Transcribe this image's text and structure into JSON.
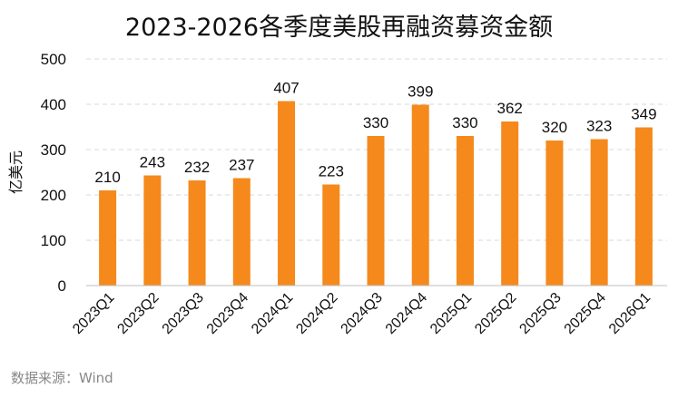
{
  "title": "2023-2026各季度美股再融资募资金额",
  "source": "数据来源：Wind",
  "watermark": "Wind",
  "chart_data": {
    "type": "bar",
    "title": "2023-2026各季度美股再融资募资金额",
    "xlabel": "",
    "ylabel": "亿美元",
    "ylim": [
      0,
      500
    ],
    "yticks": [
      0,
      100,
      200,
      300,
      400,
      500
    ],
    "grid": true,
    "bar_color": "#F5891B",
    "categories": [
      "2023Q1",
      "2023Q2",
      "2023Q3",
      "2023Q4",
      "2024Q1",
      "2024Q2",
      "2024Q3",
      "2024Q4",
      "2025Q1",
      "2025Q2",
      "2025Q3",
      "2025Q4",
      "2026Q1"
    ],
    "values": [
      210,
      243,
      232,
      237,
      407,
      223,
      330,
      399,
      330,
      362,
      320,
      323,
      349
    ]
  }
}
